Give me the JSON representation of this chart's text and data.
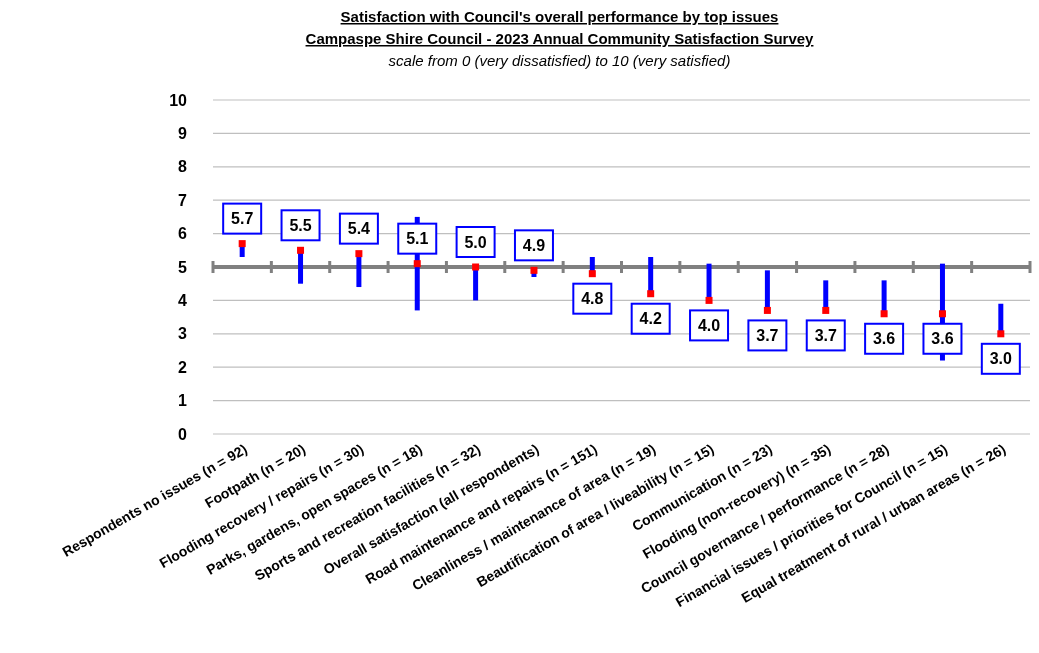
{
  "chart_data": {
    "type": "scatter",
    "title": "Satisfaction  with Council's overall performance by top issues\nCampaspe Shire Council - 2023 Annual Community Satisfaction  Survey",
    "subtitle": "scale from 0 (very dissatisfied) to 10 (very satisfied)",
    "categories": [
      "Respondents no issues (n = 92)",
      "Footpath (n = 20)",
      "Flooding recovery / repairs (n = 30)",
      "Parks, gardens, open spaces (n = 18)",
      "Sports and recreation facilities (n = 32)",
      "Overall satisfaction (all respondents)",
      "Road maintenance and repairs (n = 151)",
      "Cleanliness / maintenance of area (n = 19)",
      "Beautification of area / liveability (n = 15)",
      "Communication (n = 23)",
      "Flooding (non-recovery) (n = 35)",
      "Council governance / performance (n = 28)",
      "Financial issues / priorities for Council (n = 15)",
      "Equal treatment of rural / urban areas (n = 26)"
    ],
    "values": [
      5.7,
      5.5,
      5.4,
      5.1,
      5.0,
      4.9,
      4.8,
      4.2,
      4.0,
      3.7,
      3.7,
      3.6,
      3.6,
      3.0
    ],
    "errors": [
      [
        5.3,
        5.7
      ],
      [
        4.5,
        5.5
      ],
      [
        4.4,
        5.4
      ],
      [
        3.7,
        6.5
      ],
      [
        4.0,
        5.0
      ],
      [
        4.7,
        4.9
      ],
      [
        4.8,
        5.3
      ],
      [
        4.2,
        5.3
      ],
      [
        4.0,
        5.1
      ],
      [
        3.7,
        4.9
      ],
      [
        3.7,
        4.6
      ],
      [
        3.6,
        4.6
      ],
      [
        2.2,
        5.1
      ],
      [
        3.0,
        3.9
      ]
    ],
    "color": "#ff0000",
    "marker": "square",
    "value_labels": [
      "5.7",
      "5.5",
      "5.4",
      "5.1",
      "5.0",
      "4.9",
      "4.8",
      "4.2",
      "4.0",
      "3.7",
      "3.7",
      "3.6",
      "3.6",
      "3.0"
    ],
    "ylim": [
      0,
      10
    ],
    "yticks": [
      0,
      1,
      2,
      3,
      4,
      5,
      6,
      7,
      8,
      9,
      10
    ],
    "grid": "y",
    "ref_lines": [
      {
        "axis": "y",
        "value": 5,
        "color": "#808080"
      }
    ]
  }
}
